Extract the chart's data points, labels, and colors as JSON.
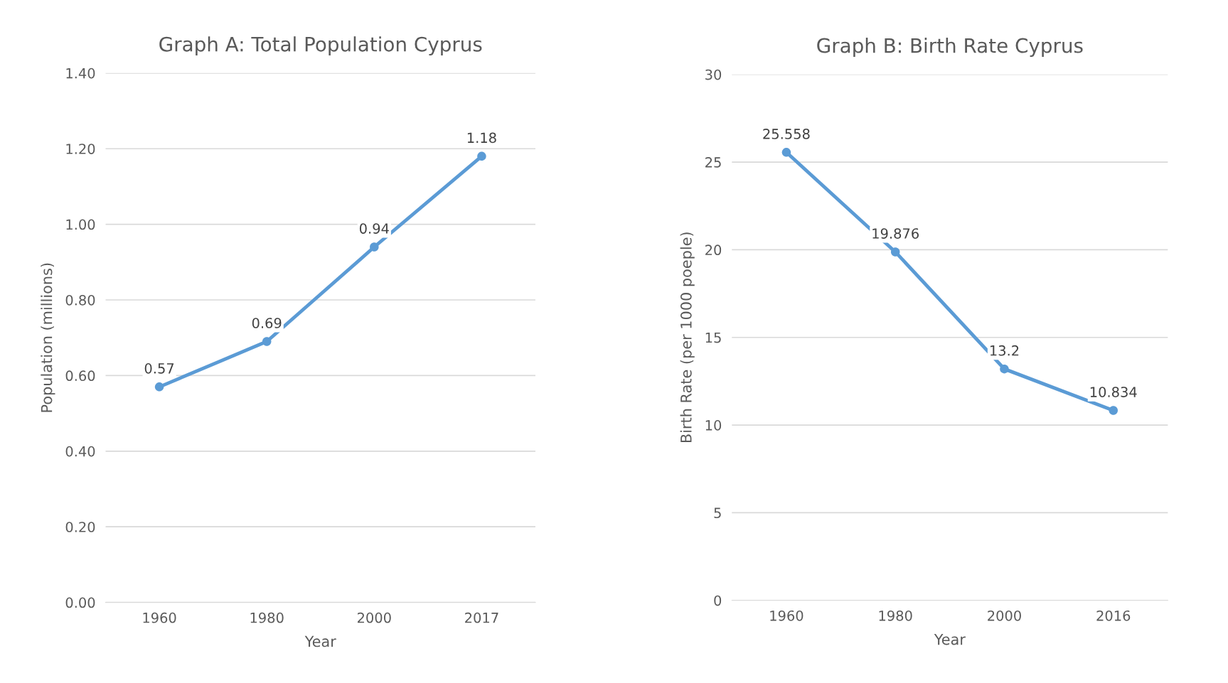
{
  "chart_data": [
    {
      "type": "line",
      "title": "Graph A: Total Population Cyprus",
      "xlabel": "Year",
      "ylabel": "Population (millions)",
      "categories": [
        "1960",
        "1980",
        "2000",
        "2017"
      ],
      "series": [
        {
          "color": "#5b9bd5",
          "values": [
            0.57,
            0.69,
            0.94,
            1.18
          ]
        }
      ],
      "ylim": [
        0,
        1.4
      ],
      "yticks": [
        {
          "value": 0,
          "label": "0.00"
        },
        {
          "value": 0.2,
          "label": "0.20"
        },
        {
          "value": 0.4,
          "label": "0.40"
        },
        {
          "value": 0.6,
          "label": "0.60"
        },
        {
          "value": 0.8,
          "label": "0.80"
        },
        {
          "value": 1.0,
          "label": "1.00"
        },
        {
          "value": 1.2,
          "label": "1.20"
        },
        {
          "value": 1.4,
          "label": "1.40"
        }
      ],
      "grid": "y",
      "marker": "circle",
      "data_labels": true
    },
    {
      "type": "line",
      "title": "Graph B: Birth Rate Cyprus",
      "xlabel": "Year",
      "ylabel": "Birth Rate (per 1000 poeple)",
      "categories": [
        "1960",
        "1980",
        "2000",
        "2016"
      ],
      "series": [
        {
          "color": "#5b9bd5",
          "values": [
            25.558,
            19.876,
            13.2,
            10.834
          ]
        }
      ],
      "ylim": [
        0,
        30
      ],
      "yticks": [
        0,
        5,
        10,
        15,
        20,
        25,
        30
      ],
      "grid": "y",
      "marker": "circle",
      "data_labels": true
    }
  ]
}
